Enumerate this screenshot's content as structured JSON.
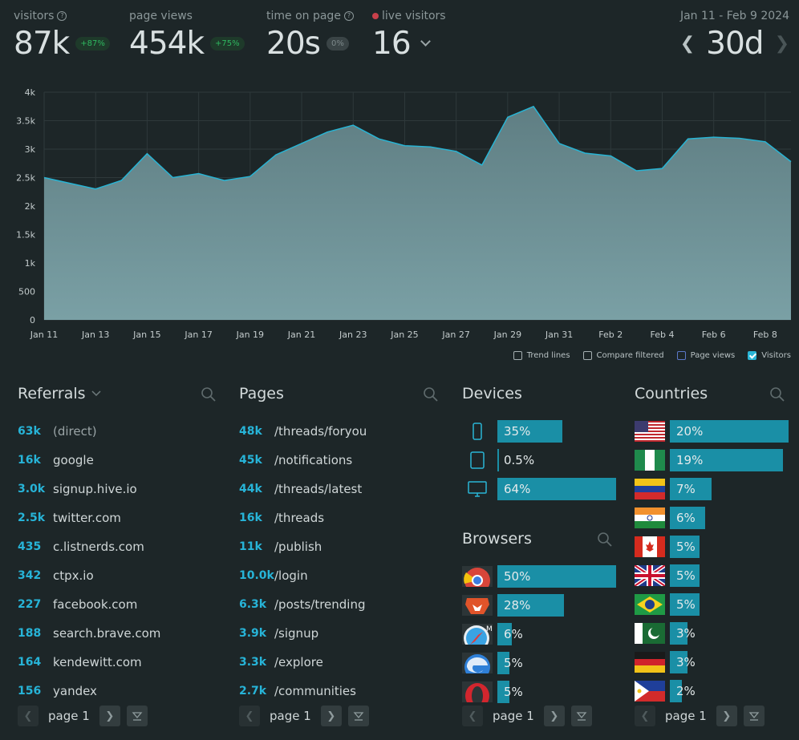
{
  "stats": {
    "visitors": {
      "label": "visitors",
      "value": "87k",
      "delta": "+87%"
    },
    "page_views": {
      "label": "page views",
      "value": "454k",
      "delta": "+75%"
    },
    "time_on_page": {
      "label": "time on page",
      "value": "20s",
      "delta": "0%"
    },
    "live_visitors": {
      "label": "live visitors",
      "value": "16"
    }
  },
  "range": {
    "dates": "Jan 11 - Feb 9 2024",
    "value": "30d",
    "prev": "❮",
    "next": "❯"
  },
  "chart_data": {
    "type": "area",
    "title": "",
    "xlabel": "",
    "ylabel": "",
    "ylim": [
      0,
      4000
    ],
    "y_ticks": [
      "4k",
      "3.5k",
      "3k",
      "2.5k",
      "2k",
      "1.5k",
      "1k",
      "500",
      "0"
    ],
    "x_ticks": [
      "Jan 11",
      "Jan 13",
      "Jan 15",
      "Jan 17",
      "Jan 19",
      "Jan 21",
      "Jan 23",
      "Jan 25",
      "Jan 27",
      "Jan 29",
      "Jan 31",
      "Feb 2",
      "Feb 4",
      "Feb 6",
      "Feb 8"
    ],
    "series": [
      {
        "name": "Visitors",
        "values": [
          2500,
          2400,
          2300,
          2450,
          2920,
          2500,
          2570,
          2450,
          2520,
          2900,
          3100,
          3300,
          3420,
          3180,
          3060,
          3040,
          2960,
          2720,
          3560,
          3750,
          3100,
          2930,
          2880,
          2620,
          2660,
          3180,
          3210,
          3190,
          3130,
          2780
        ]
      }
    ],
    "grid": true,
    "colors": {
      "fill": "#6b8e93",
      "line": "#28b4d4",
      "grid": "#2e393b",
      "tick": "#c3cbcc"
    }
  },
  "legend": [
    {
      "label": "Trend lines",
      "checked": false
    },
    {
      "label": "Compare filtered",
      "checked": false
    },
    {
      "label": "Page views",
      "checked": false
    },
    {
      "label": "Visitors",
      "checked": true
    }
  ],
  "referrals": {
    "title": "Referrals",
    "rows": [
      {
        "count": "63k",
        "label": "(direct)"
      },
      {
        "count": "16k",
        "label": "google"
      },
      {
        "count": "3.0k",
        "label": "signup.hive.io"
      },
      {
        "count": "2.5k",
        "label": "twitter.com"
      },
      {
        "count": "435",
        "label": "c.listnerds.com"
      },
      {
        "count": "342",
        "label": "ctpx.io"
      },
      {
        "count": "227",
        "label": "facebook.com"
      },
      {
        "count": "188",
        "label": "search.brave.com"
      },
      {
        "count": "164",
        "label": "kendewitt.com"
      },
      {
        "count": "156",
        "label": "yandex"
      }
    ],
    "page": "page 1"
  },
  "pages": {
    "title": "Pages",
    "rows": [
      {
        "count": "48k",
        "label": "/threads/foryou"
      },
      {
        "count": "45k",
        "label": "/notifications"
      },
      {
        "count": "44k",
        "label": "/threads/latest"
      },
      {
        "count": "16k",
        "label": "/threads"
      },
      {
        "count": "11k",
        "label": "/publish"
      },
      {
        "count": "10.0k",
        "label": "/login"
      },
      {
        "count": "6.3k",
        "label": "/posts/trending"
      },
      {
        "count": "3.9k",
        "label": "/signup"
      },
      {
        "count": "3.3k",
        "label": "/explore"
      },
      {
        "count": "2.7k",
        "label": "/communities"
      }
    ],
    "page": "page 1"
  },
  "devices": {
    "title": "Devices",
    "rows": [
      {
        "icon": "phone-icon",
        "pct": "35%",
        "fraction": 0.35
      },
      {
        "icon": "tablet-icon",
        "pct": "0.5%",
        "fraction": 0.005
      },
      {
        "icon": "desktop-icon",
        "pct": "64%",
        "fraction": 0.64
      }
    ]
  },
  "browsers": {
    "title": "Browsers",
    "rows": [
      {
        "icon": "chrome-icon",
        "pct": "50%",
        "fraction": 0.5
      },
      {
        "icon": "brave-icon",
        "pct": "28%",
        "fraction": 0.28
      },
      {
        "icon": "safari-icon",
        "pct": "6%",
        "fraction": 0.06
      },
      {
        "icon": "edge-icon",
        "pct": "5%",
        "fraction": 0.05
      },
      {
        "icon": "opera-icon",
        "pct": "5%",
        "fraction": 0.05
      }
    ],
    "page": "page 1"
  },
  "countries": {
    "title": "Countries",
    "rows": [
      {
        "icon": "flag-usa-icon",
        "pct": "20%",
        "fraction": 0.2
      },
      {
        "icon": "flag-nigeria-icon",
        "pct": "19%",
        "fraction": 0.19
      },
      {
        "icon": "flag-venezuela-icon",
        "pct": "7%",
        "fraction": 0.07
      },
      {
        "icon": "flag-india-icon",
        "pct": "6%",
        "fraction": 0.06
      },
      {
        "icon": "flag-canada-icon",
        "pct": "5%",
        "fraction": 0.05
      },
      {
        "icon": "flag-uk-icon",
        "pct": "5%",
        "fraction": 0.05
      },
      {
        "icon": "flag-brazil-icon",
        "pct": "5%",
        "fraction": 0.05
      },
      {
        "icon": "flag-pakistan-icon",
        "pct": "3%",
        "fraction": 0.03
      },
      {
        "icon": "flag-germany-icon",
        "pct": "3%",
        "fraction": 0.03
      },
      {
        "icon": "flag-philippines-icon",
        "pct": "2%",
        "fraction": 0.02
      }
    ],
    "page": "page 1"
  },
  "icons": {
    "help": "?",
    "live": "live-dot-icon",
    "search": "search-icon",
    "chevron": "chevron-down-icon",
    "prev": "❮",
    "next": "❯",
    "filter": "filter-icon"
  }
}
